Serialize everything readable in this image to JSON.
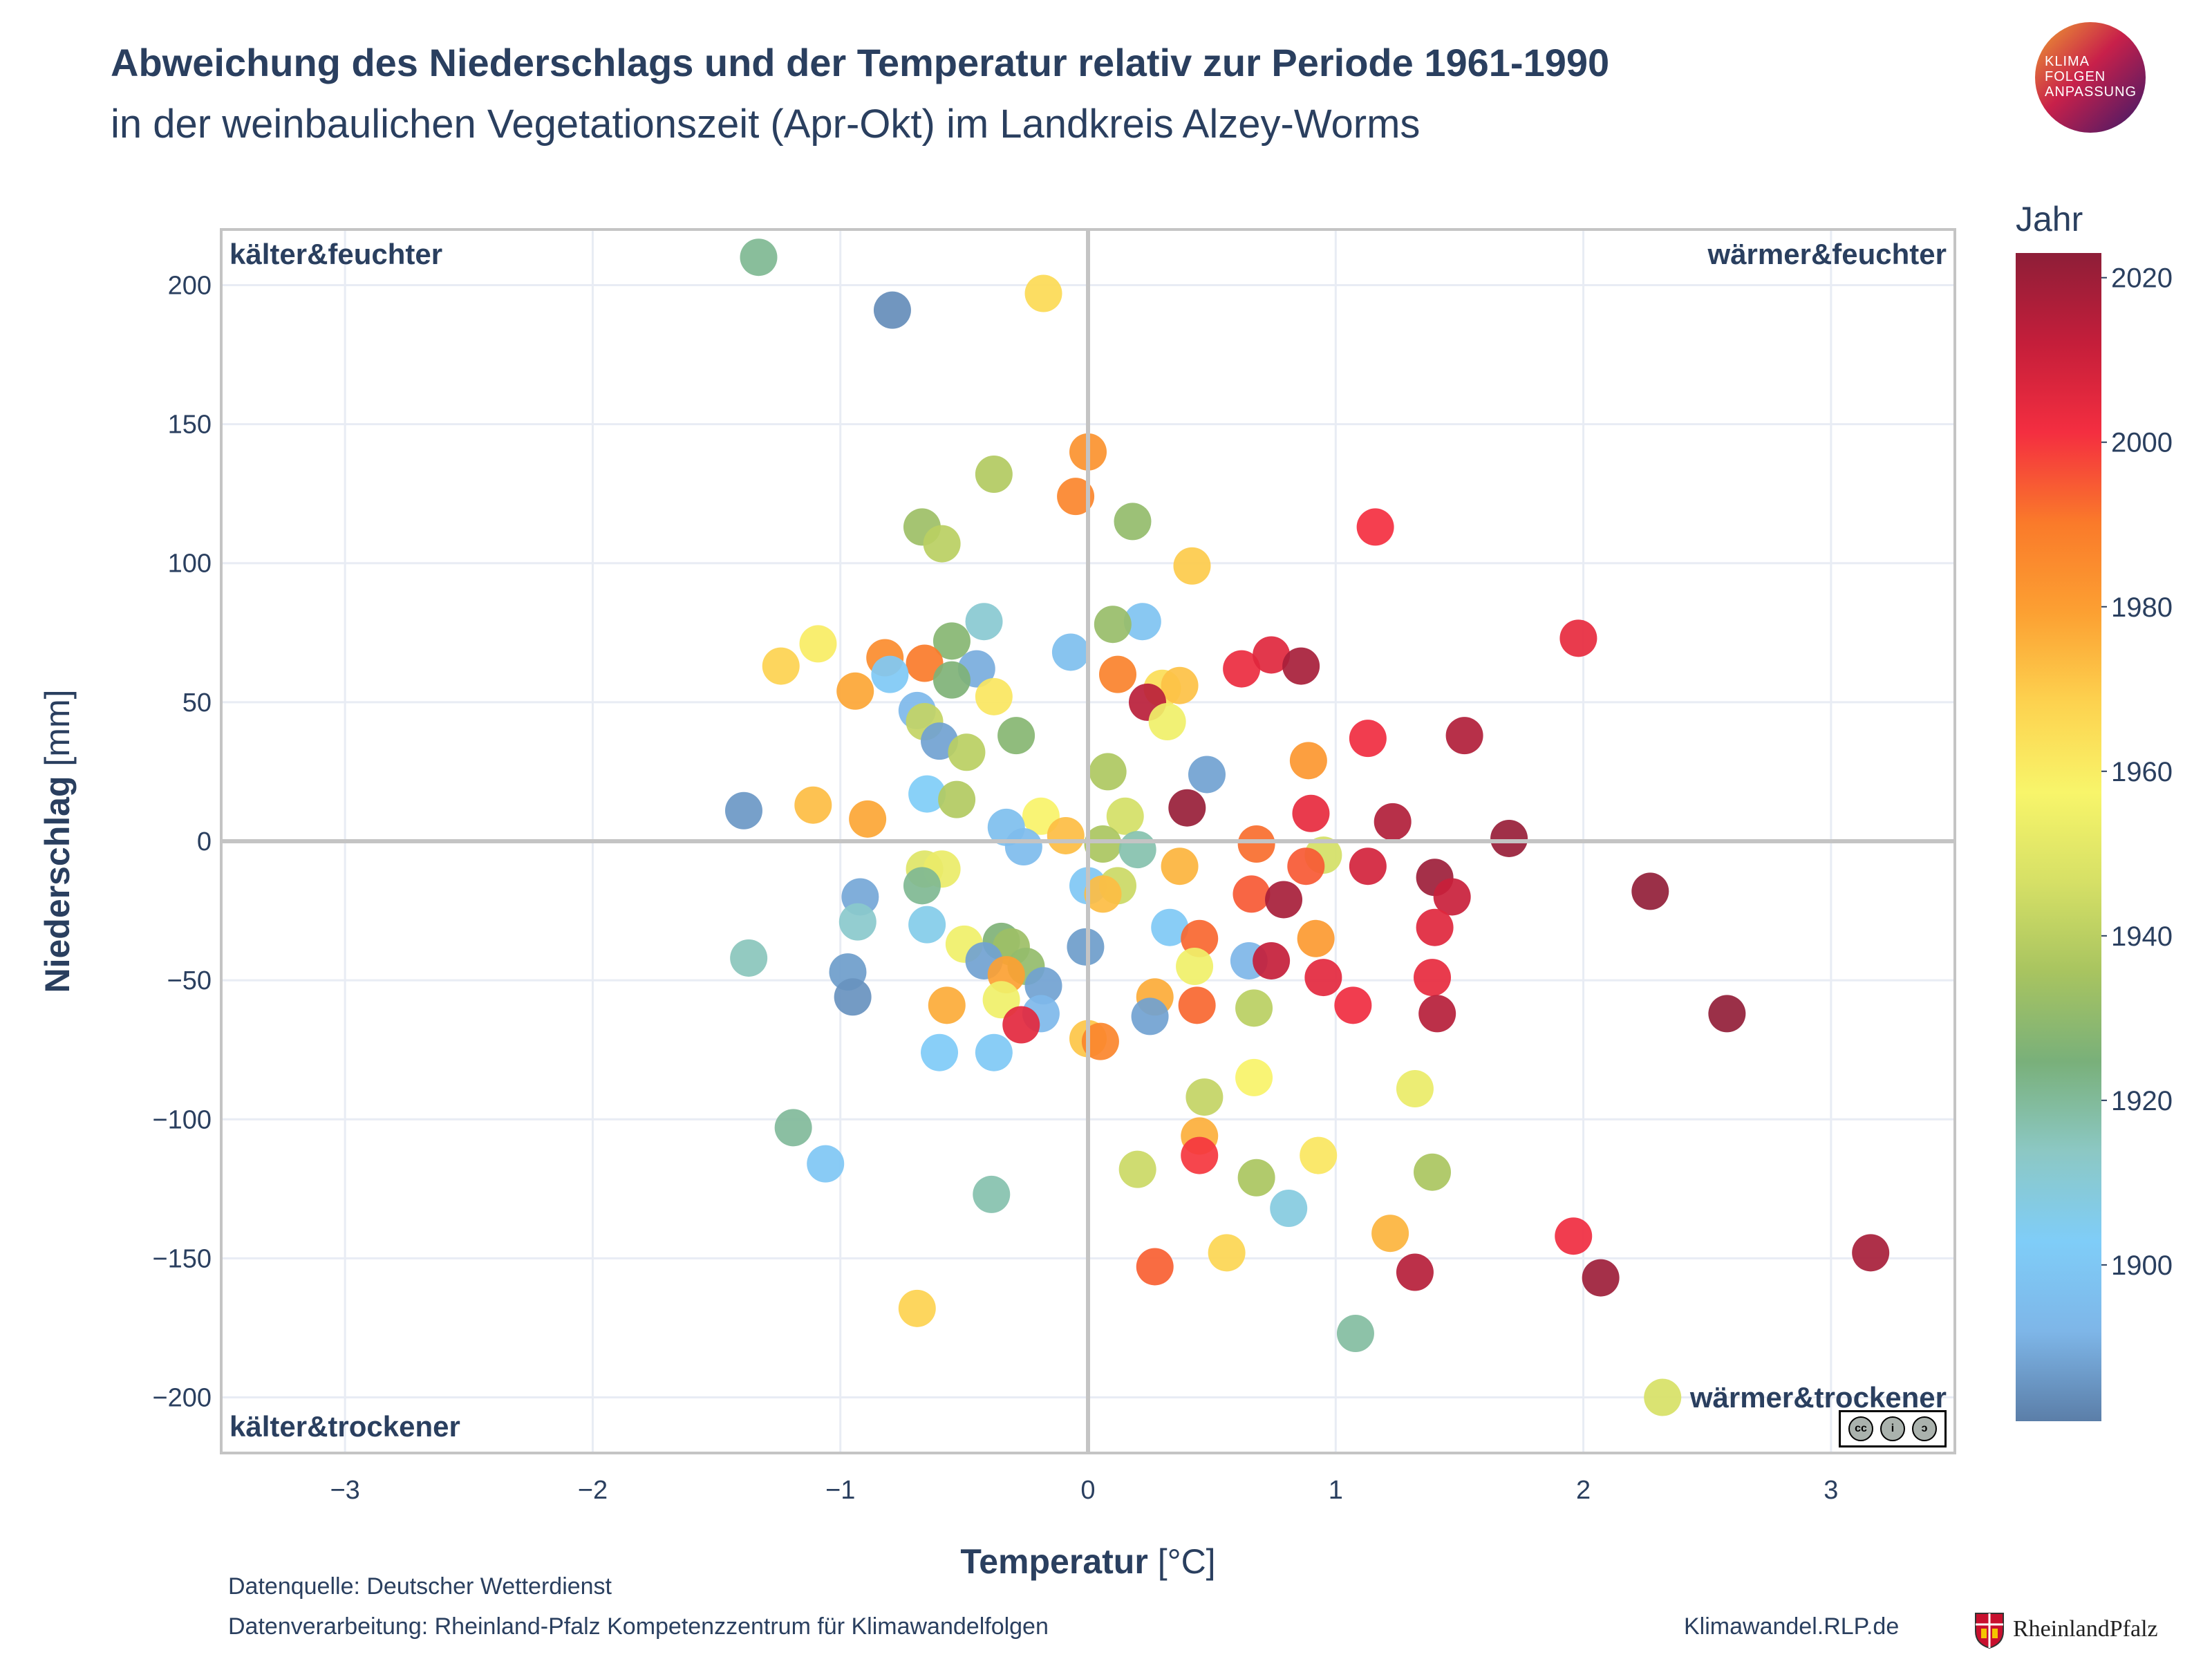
{
  "header": {
    "title": "Abweichung des Niederschlags und der Temperatur relativ zur Periode 1961-1990",
    "subtitle": "in der weinbaulichen Vegetationszeit (Apr-Okt) im Landkreis Alzey-Worms",
    "logo_text": [
      "KLIMA",
      "FOLGEN",
      "ANPASSUNG"
    ]
  },
  "footer": {
    "source": "Datenquelle: Deutscher Wetterdienst",
    "processing": "Datenverarbeitung: Rheinland-Pfalz Kompetenzzentrum für Klimawandelfolgen",
    "website": "Klimawandel.RLP.de",
    "rlp_logo_text": "RheinlandPfalz"
  },
  "license": {
    "label": "CC BY SA",
    "icon": "cc-by-sa-icon"
  },
  "chart_data": {
    "type": "scatter",
    "xlabel_bold": "Temperatur",
    "xlabel_unit": " [°C]",
    "ylabel_bold": "Niederschlag",
    "ylabel_unit": " [mm]",
    "xlim": [
      -3.5,
      3.5
    ],
    "ylim": [
      -220,
      220
    ],
    "xticks": [
      -3,
      -2,
      -1,
      0,
      1,
      2,
      3
    ],
    "yticks": [
      -200,
      -150,
      -100,
      -50,
      0,
      50,
      100,
      150,
      200
    ],
    "xtick_labels": [
      "−3",
      "−2",
      "−1",
      "0",
      "1",
      "2",
      "3"
    ],
    "ytick_labels": [
      "−200",
      "−150",
      "−100",
      "−50",
      "0",
      "50",
      "100",
      "150",
      "200"
    ],
    "grid": true,
    "quadrant_labels": {
      "top_left": "kälter&feuchter",
      "top_right": "wärmer&feuchter",
      "bottom_left": "kälter&trockener",
      "bottom_right": "wärmer&trockener"
    },
    "colorbar": {
      "title": "Jahr",
      "range": [
        1881,
        2023
      ],
      "ticks": [
        1900,
        1920,
        1940,
        1960,
        1980,
        2000,
        2020
      ],
      "colors": [
        "#5b7ea8",
        "#7eb6e8",
        "#7fcdf8",
        "#8cc8c4",
        "#79b07a",
        "#a8c460",
        "#d6e066",
        "#f8f56a",
        "#fdd24f",
        "#fca032",
        "#fa7a2a",
        "#f42e40",
        "#c41e3a",
        "#8e1e38"
      ]
    },
    "points": [
      {
        "x": -1.33,
        "y": 210,
        "year": 1921
      },
      {
        "x": -0.79,
        "y": 191,
        "year": 1884
      },
      {
        "x": -0.18,
        "y": 197,
        "year": 1966
      },
      {
        "x": 0.0,
        "y": 140,
        "year": 1983
      },
      {
        "x": -0.05,
        "y": 124,
        "year": 1987
      },
      {
        "x": -0.38,
        "y": 132,
        "year": 1938
      },
      {
        "x": 0.18,
        "y": 115,
        "year": 1931
      },
      {
        "x": -0.67,
        "y": 113,
        "year": 1933
      },
      {
        "x": -0.59,
        "y": 107,
        "year": 1940
      },
      {
        "x": 1.16,
        "y": 113,
        "year": 2001
      },
      {
        "x": 0.42,
        "y": 99,
        "year": 1970
      },
      {
        "x": -0.42,
        "y": 79,
        "year": 1911
      },
      {
        "x": 0.22,
        "y": 79,
        "year": 1898
      },
      {
        "x": 0.1,
        "y": 78,
        "year": 1932
      },
      {
        "x": -0.55,
        "y": 72,
        "year": 1928
      },
      {
        "x": -1.09,
        "y": 71,
        "year": 1960
      },
      {
        "x": -0.07,
        "y": 68,
        "year": 1896
      },
      {
        "x": -0.82,
        "y": 66,
        "year": 1985
      },
      {
        "x": -0.66,
        "y": 64,
        "year": 1990
      },
      {
        "x": -1.24,
        "y": 63,
        "year": 1968
      },
      {
        "x": -0.45,
        "y": 62,
        "year": 1890
      },
      {
        "x": -0.55,
        "y": 58,
        "year": 1926
      },
      {
        "x": -0.8,
        "y": 60,
        "year": 1901
      },
      {
        "x": 0.62,
        "y": 62,
        "year": 2003
      },
      {
        "x": 0.74,
        "y": 67,
        "year": 2006
      },
      {
        "x": 0.86,
        "y": 63,
        "year": 2018
      },
      {
        "x": 1.98,
        "y": 73,
        "year": 2004
      },
      {
        "x": 0.12,
        "y": 60,
        "year": 1988
      },
      {
        "x": 0.3,
        "y": 55,
        "year": 1965
      },
      {
        "x": 0.37,
        "y": 56,
        "year": 1972
      },
      {
        "x": -0.38,
        "y": 52,
        "year": 1962
      },
      {
        "x": -0.94,
        "y": 54,
        "year": 1978
      },
      {
        "x": -0.69,
        "y": 47,
        "year": 1893
      },
      {
        "x": -0.66,
        "y": 43,
        "year": 1942
      },
      {
        "x": 0.24,
        "y": 50,
        "year": 2014
      },
      {
        "x": 0.32,
        "y": 43,
        "year": 1955
      },
      {
        "x": -0.29,
        "y": 38,
        "year": 1928
      },
      {
        "x": -0.6,
        "y": 36,
        "year": 1888
      },
      {
        "x": -0.49,
        "y": 32,
        "year": 1940
      },
      {
        "x": 1.52,
        "y": 38,
        "year": 2016
      },
      {
        "x": 1.13,
        "y": 37,
        "year": 2002
      },
      {
        "x": 0.89,
        "y": 29,
        "year": 1982
      },
      {
        "x": 0.08,
        "y": 25,
        "year": 1937
      },
      {
        "x": 0.48,
        "y": 24,
        "year": 1888
      },
      {
        "x": -0.65,
        "y": 17,
        "year": 1903
      },
      {
        "x": -0.53,
        "y": 15,
        "year": 1938
      },
      {
        "x": -1.11,
        "y": 13,
        "year": 1973
      },
      {
        "x": -1.39,
        "y": 11,
        "year": 1886
      },
      {
        "x": -0.89,
        "y": 8,
        "year": 1978
      },
      {
        "x": -0.19,
        "y": 9,
        "year": 1958
      },
      {
        "x": 0.15,
        "y": 9,
        "year": 1946
      },
      {
        "x": 0.4,
        "y": 12,
        "year": 2021
      },
      {
        "x": 0.9,
        "y": 10,
        "year": 2004
      },
      {
        "x": 1.23,
        "y": 7,
        "year": 2016
      },
      {
        "x": -0.33,
        "y": 5,
        "year": 1896
      },
      {
        "x": -0.09,
        "y": 2,
        "year": 1973
      },
      {
        "x": 0.06,
        "y": -1,
        "year": 1936
      },
      {
        "x": -0.26,
        "y": -2,
        "year": 1895
      },
      {
        "x": 0.2,
        "y": -3,
        "year": 1917
      },
      {
        "x": 0.68,
        "y": -1,
        "year": 1992
      },
      {
        "x": 1.7,
        "y": 1,
        "year": 2021
      },
      {
        "x": 0.95,
        "y": -5,
        "year": 1946
      },
      {
        "x": 0.37,
        "y": -9,
        "year": 1975
      },
      {
        "x": 0.88,
        "y": -9,
        "year": 1995
      },
      {
        "x": 1.13,
        "y": -9,
        "year": 2009
      },
      {
        "x": 1.4,
        "y": -13,
        "year": 2020
      },
      {
        "x": -0.66,
        "y": -10,
        "year": 1949
      },
      {
        "x": -0.59,
        "y": -10,
        "year": 1953
      },
      {
        "x": -0.67,
        "y": -16,
        "year": 1921
      },
      {
        "x": 0.0,
        "y": -16,
        "year": 1900
      },
      {
        "x": 0.12,
        "y": -16,
        "year": 1944
      },
      {
        "x": 0.06,
        "y": -19,
        "year": 1973
      },
      {
        "x": 0.66,
        "y": -19,
        "year": 1995
      },
      {
        "x": 0.79,
        "y": -21,
        "year": 2018
      },
      {
        "x": 1.47,
        "y": -20,
        "year": 2011
      },
      {
        "x": 2.27,
        "y": -18,
        "year": 2022
      },
      {
        "x": -0.92,
        "y": -20,
        "year": 1889
      },
      {
        "x": -0.93,
        "y": -29,
        "year": 1912
      },
      {
        "x": -0.65,
        "y": -30,
        "year": 1906
      },
      {
        "x": 0.33,
        "y": -31,
        "year": 1901
      },
      {
        "x": 1.4,
        "y": -31,
        "year": 2006
      },
      {
        "x": -0.35,
        "y": -36,
        "year": 1926
      },
      {
        "x": -0.5,
        "y": -37,
        "year": 1955
      },
      {
        "x": -0.31,
        "y": -38,
        "year": 1933
      },
      {
        "x": 0.45,
        "y": -35,
        "year": 1993
      },
      {
        "x": 0.92,
        "y": -35,
        "year": 1981
      },
      {
        "x": -0.01,
        "y": -38,
        "year": 1887
      },
      {
        "x": -1.37,
        "y": -42,
        "year": 1915
      },
      {
        "x": -0.42,
        "y": -43,
        "year": 1888
      },
      {
        "x": -0.25,
        "y": -45,
        "year": 1931
      },
      {
        "x": 0.43,
        "y": -45,
        "year": 1955
      },
      {
        "x": 0.65,
        "y": -43,
        "year": 1892
      },
      {
        "x": 0.74,
        "y": -43,
        "year": 2012
      },
      {
        "x": -0.33,
        "y": -48,
        "year": 1979
      },
      {
        "x": -0.97,
        "y": -47,
        "year": 1887
      },
      {
        "x": 0.95,
        "y": -49,
        "year": 2005
      },
      {
        "x": 1.39,
        "y": -49,
        "year": 2004
      },
      {
        "x": -0.18,
        "y": -52,
        "year": 1888
      },
      {
        "x": -0.95,
        "y": -56,
        "year": 1885
      },
      {
        "x": -0.35,
        "y": -57,
        "year": 1955
      },
      {
        "x": 0.27,
        "y": -56,
        "year": 1977
      },
      {
        "x": -0.57,
        "y": -59,
        "year": 1977
      },
      {
        "x": 0.44,
        "y": -59,
        "year": 1993
      },
      {
        "x": 0.67,
        "y": -60,
        "year": 1940
      },
      {
        "x": 1.07,
        "y": -59,
        "year": 2002
      },
      {
        "x": 1.41,
        "y": -62,
        "year": 2015
      },
      {
        "x": 2.58,
        "y": -62,
        "year": 2022
      },
      {
        "x": -0.19,
        "y": -62,
        "year": 1893
      },
      {
        "x": 0.25,
        "y": -63,
        "year": 1888
      },
      {
        "x": -0.27,
        "y": -66,
        "year": 2005
      },
      {
        "x": 0.0,
        "y": -71,
        "year": 1971
      },
      {
        "x": 0.05,
        "y": -72,
        "year": 1987
      },
      {
        "x": -0.6,
        "y": -76,
        "year": 1902
      },
      {
        "x": -0.38,
        "y": -76,
        "year": 1901
      },
      {
        "x": 0.67,
        "y": -85,
        "year": 1958
      },
      {
        "x": 1.32,
        "y": -89,
        "year": 1953
      },
      {
        "x": 0.47,
        "y": -92,
        "year": 1942
      },
      {
        "x": -1.19,
        "y": -103,
        "year": 1920
      },
      {
        "x": 0.45,
        "y": -106,
        "year": 1976
      },
      {
        "x": 0.45,
        "y": -113,
        "year": 2000
      },
      {
        "x": -1.06,
        "y": -116,
        "year": 1900
      },
      {
        "x": 0.93,
        "y": -113,
        "year": 1962
      },
      {
        "x": 0.2,
        "y": -118,
        "year": 1944
      },
      {
        "x": 0.68,
        "y": -121,
        "year": 1936
      },
      {
        "x": 1.39,
        "y": -119,
        "year": 1936
      },
      {
        "x": -0.39,
        "y": -127,
        "year": 1917
      },
      {
        "x": 0.81,
        "y": -132,
        "year": 1908
      },
      {
        "x": 1.22,
        "y": -141,
        "year": 1975
      },
      {
        "x": 1.96,
        "y": -142,
        "year": 2002
      },
      {
        "x": 0.56,
        "y": -148,
        "year": 1967
      },
      {
        "x": 3.16,
        "y": -148,
        "year": 2018
      },
      {
        "x": 0.27,
        "y": -153,
        "year": 1994
      },
      {
        "x": 1.32,
        "y": -155,
        "year": 2015
      },
      {
        "x": 2.07,
        "y": -157,
        "year": 2020
      },
      {
        "x": -0.69,
        "y": -168,
        "year": 1968
      },
      {
        "x": 1.08,
        "y": -177,
        "year": 1919
      },
      {
        "x": 2.32,
        "y": -200,
        "year": 1947
      }
    ]
  }
}
